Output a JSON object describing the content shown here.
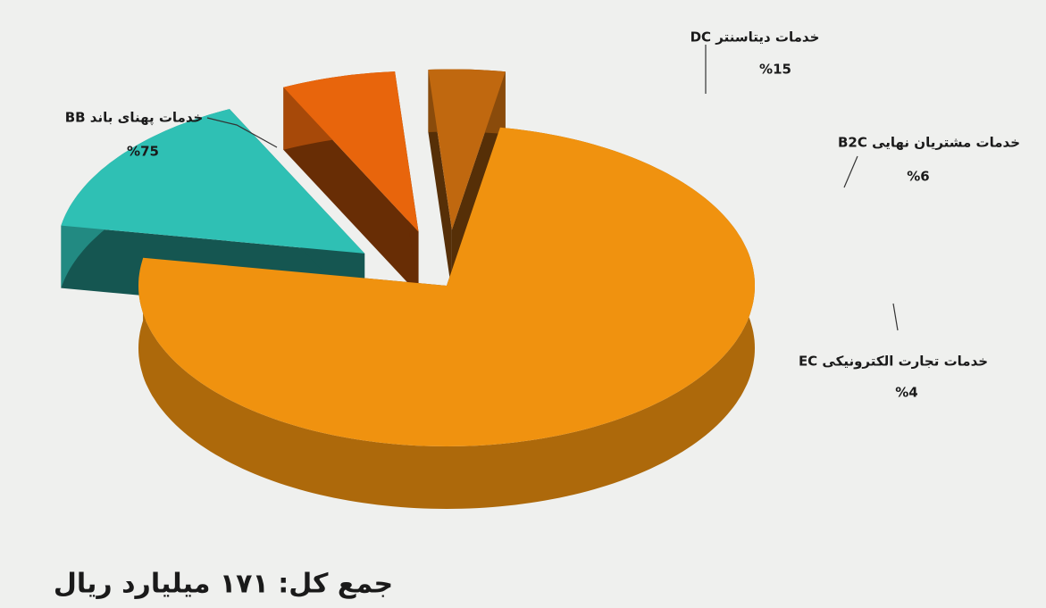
{
  "chart_data": {
    "type": "pie",
    "categories": [
      "خدمات پهنای باند BB",
      "خدمات دیتاسنتر DC",
      "خدمات مشتریان نهایی B2C",
      "خدمات تجارت الکترونیکی EC"
    ],
    "values": [
      75,
      15,
      6,
      4
    ],
    "value_labels": [
      "%75",
      "%15",
      "%6",
      "%4"
    ],
    "colors": [
      "#f0920f",
      "#2fc0b4",
      "#e8650c",
      "#c0680f"
    ],
    "footnote": "جمع کل: ۱۷۱ میلیارد ریال"
  }
}
